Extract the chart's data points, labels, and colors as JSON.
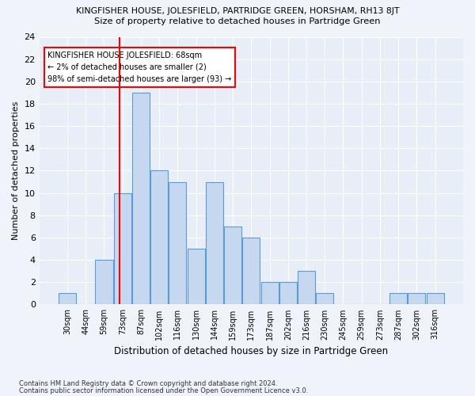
{
  "title": "KINGFISHER HOUSE, JOLESFIELD, PARTRIDGE GREEN, HORSHAM, RH13 8JT",
  "subtitle": "Size of property relative to detached houses in Partridge Green",
  "xlabel": "Distribution of detached houses by size in Partridge Green",
  "ylabel": "Number of detached properties",
  "bins": [
    "30sqm",
    "44sqm",
    "59sqm",
    "73sqm",
    "87sqm",
    "102sqm",
    "116sqm",
    "130sqm",
    "144sqm",
    "159sqm",
    "173sqm",
    "187sqm",
    "202sqm",
    "216sqm",
    "230sqm",
    "245sqm",
    "259sqm",
    "273sqm",
    "287sqm",
    "302sqm",
    "316sqm"
  ],
  "values": [
    1,
    0,
    4,
    10,
    19,
    12,
    11,
    5,
    11,
    7,
    6,
    2,
    2,
    3,
    1,
    0,
    0,
    0,
    1,
    1,
    1
  ],
  "bar_color": "#c5d8f0",
  "bar_edge_color": "#5b9bd5",
  "background_color": "#e8eef7",
  "grid_color": "#ffffff",
  "fig_background": "#f0f4fa",
  "ylim": [
    0,
    24
  ],
  "yticks": [
    0,
    2,
    4,
    6,
    8,
    10,
    12,
    14,
    16,
    18,
    20,
    22,
    24
  ],
  "red_line_x": 2.82,
  "annotation_text": "KINGFISHER HOUSE JOLESFIELD: 68sqm\n← 2% of detached houses are smaller (2)\n98% of semi-detached houses are larger (93) →",
  "footnote1": "Contains HM Land Registry data © Crown copyright and database right 2024.",
  "footnote2": "Contains public sector information licensed under the Open Government Licence v3.0."
}
